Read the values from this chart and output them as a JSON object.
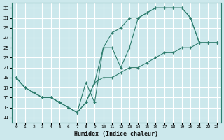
{
  "xlabel": "Humidex (Indice chaleur)",
  "bg_color": "#cce8ec",
  "grid_color": "#ffffff",
  "line_color": "#2e7d6e",
  "xlim": [
    -0.5,
    23.5
  ],
  "ylim": [
    10,
    34
  ],
  "xticks": [
    0,
    1,
    2,
    3,
    4,
    5,
    6,
    7,
    8,
    9,
    10,
    11,
    12,
    13,
    14,
    15,
    16,
    17,
    18,
    19,
    20,
    21,
    22,
    23
  ],
  "yticks": [
    11,
    13,
    15,
    17,
    19,
    21,
    23,
    25,
    27,
    29,
    31,
    33
  ],
  "line1_x": [
    0,
    1,
    2,
    3,
    4,
    5,
    6,
    7,
    8,
    9,
    10,
    11,
    12,
    13,
    14,
    15,
    16,
    17,
    18,
    19,
    20,
    21,
    22,
    23
  ],
  "line1_y": [
    19,
    17,
    16,
    15,
    15,
    14,
    13,
    12,
    14,
    18,
    25,
    28,
    29,
    31,
    31,
    32,
    33,
    33,
    33,
    33,
    31,
    26,
    26,
    26
  ],
  "line2_x": [
    0,
    1,
    2,
    3,
    4,
    5,
    6,
    7,
    8,
    9,
    10,
    11,
    12,
    13,
    14,
    15,
    16,
    17,
    18,
    19,
    20,
    21,
    22,
    23
  ],
  "line2_y": [
    19,
    17,
    16,
    15,
    15,
    14,
    13,
    12,
    18,
    14,
    25,
    25,
    21,
    25,
    31,
    32,
    33,
    33,
    33,
    33,
    31,
    26,
    26,
    26
  ],
  "line3_x": [
    0,
    1,
    2,
    3,
    4,
    5,
    6,
    7,
    8,
    9,
    10,
    11,
    12,
    13,
    14,
    15,
    16,
    17,
    18,
    19,
    20,
    21,
    22,
    23
  ],
  "line3_y": [
    19,
    17,
    16,
    15,
    15,
    14,
    13,
    12,
    14,
    18,
    19,
    19,
    20,
    21,
    21,
    22,
    23,
    24,
    24,
    25,
    25,
    26,
    26,
    26
  ]
}
